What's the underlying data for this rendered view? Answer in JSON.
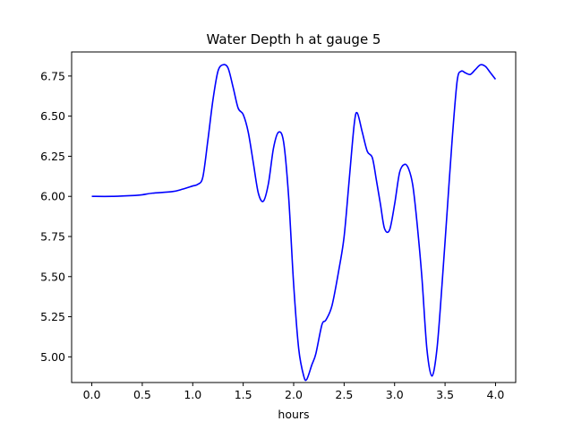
{
  "chart_data": {
    "type": "line",
    "title": "Water Depth h at gauge 5",
    "xlabel": "hours",
    "ylabel": "",
    "xlim": [
      -0.2,
      4.2
    ],
    "ylim": [
      4.84,
      6.9
    ],
    "xticks": [
      0.0,
      0.5,
      1.0,
      1.5,
      2.0,
      2.5,
      3.0,
      3.5,
      4.0
    ],
    "xtick_labels": [
      "0.0",
      "0.5",
      "1.0",
      "1.5",
      "2.0",
      "2.5",
      "3.0",
      "3.5",
      "4.0"
    ],
    "yticks": [
      5.0,
      5.25,
      5.5,
      5.75,
      6.0,
      6.25,
      6.5,
      6.75
    ],
    "ytick_labels": [
      "5.00",
      "5.25",
      "5.50",
      "5.75",
      "6.00",
      "6.25",
      "6.50",
      "6.75"
    ],
    "grid": false,
    "legend": "none",
    "series": [
      {
        "color": "#0000ff",
        "x": [
          0.0,
          0.2,
          0.4,
          0.5,
          0.6,
          0.8,
          0.9,
          1.0,
          1.05,
          1.1,
          1.15,
          1.2,
          1.25,
          1.3,
          1.35,
          1.4,
          1.45,
          1.5,
          1.55,
          1.6,
          1.65,
          1.7,
          1.75,
          1.8,
          1.85,
          1.9,
          1.95,
          2.0,
          2.05,
          2.1,
          2.13,
          2.18,
          2.22,
          2.28,
          2.32,
          2.38,
          2.45,
          2.5,
          2.55,
          2.6,
          2.63,
          2.68,
          2.73,
          2.78,
          2.82,
          2.86,
          2.9,
          2.95,
          3.0,
          3.05,
          3.1,
          3.14,
          3.18,
          3.22,
          3.27,
          3.32,
          3.37,
          3.42,
          3.47,
          3.52,
          3.57,
          3.62,
          3.66,
          3.7,
          3.75,
          3.8,
          3.85,
          3.9,
          3.95,
          4.0
        ],
        "y": [
          6.0,
          6.0,
          6.005,
          6.01,
          6.02,
          6.03,
          6.045,
          6.065,
          6.075,
          6.12,
          6.35,
          6.6,
          6.78,
          6.82,
          6.8,
          6.68,
          6.55,
          6.51,
          6.4,
          6.21,
          6.02,
          5.97,
          6.08,
          6.3,
          6.4,
          6.34,
          6.0,
          5.45,
          5.05,
          4.88,
          4.86,
          4.95,
          5.02,
          5.2,
          5.23,
          5.32,
          5.55,
          5.75,
          6.1,
          6.45,
          6.52,
          6.4,
          6.28,
          6.24,
          6.1,
          5.95,
          5.8,
          5.79,
          5.95,
          6.15,
          6.2,
          6.17,
          6.07,
          5.85,
          5.5,
          5.05,
          4.88,
          5.05,
          5.45,
          5.9,
          6.35,
          6.72,
          6.78,
          6.77,
          6.76,
          6.79,
          6.82,
          6.81,
          6.77,
          6.73
        ]
      }
    ]
  }
}
